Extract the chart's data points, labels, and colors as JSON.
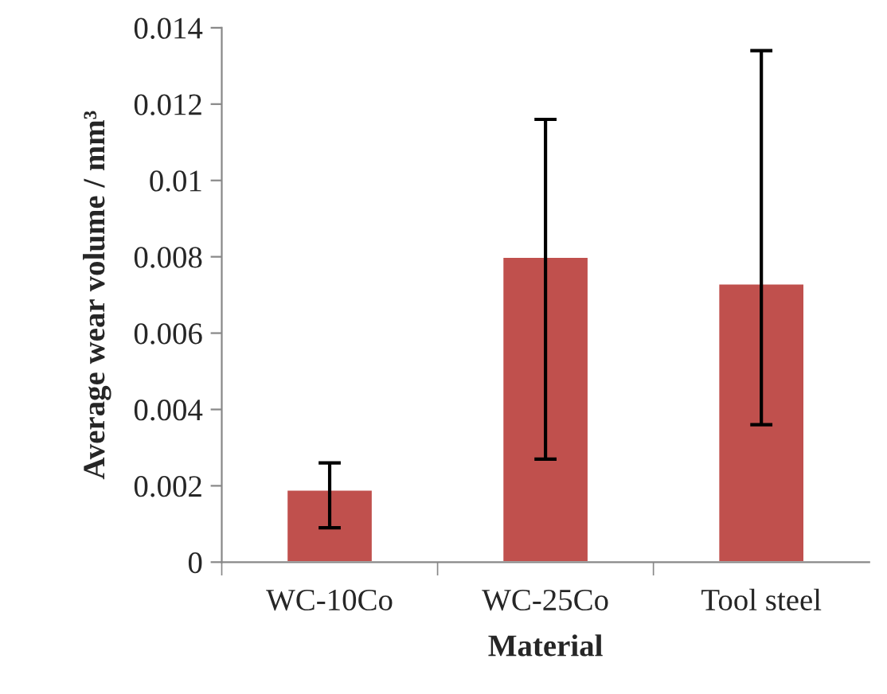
{
  "chart_data": {
    "type": "bar",
    "xlabel": "Material",
    "ylabel": "Average wear volume / mm³",
    "categories": [
      "WC-10Co",
      "WC-25Co",
      "Tool steel"
    ],
    "values": [
      0.0019,
      0.008,
      0.0073
    ],
    "color": "#c0504d",
    "errors": [
      [
        0.0009,
        0.0026
      ],
      [
        0.0027,
        0.0116
      ],
      [
        0.0036,
        0.0134
      ]
    ],
    "ylim": [
      0,
      0.014
    ],
    "yticks": [
      0,
      0.002,
      0.004,
      0.006,
      0.008,
      0.01,
      0.012,
      0.014
    ],
    "grid": false,
    "legend": false
  }
}
